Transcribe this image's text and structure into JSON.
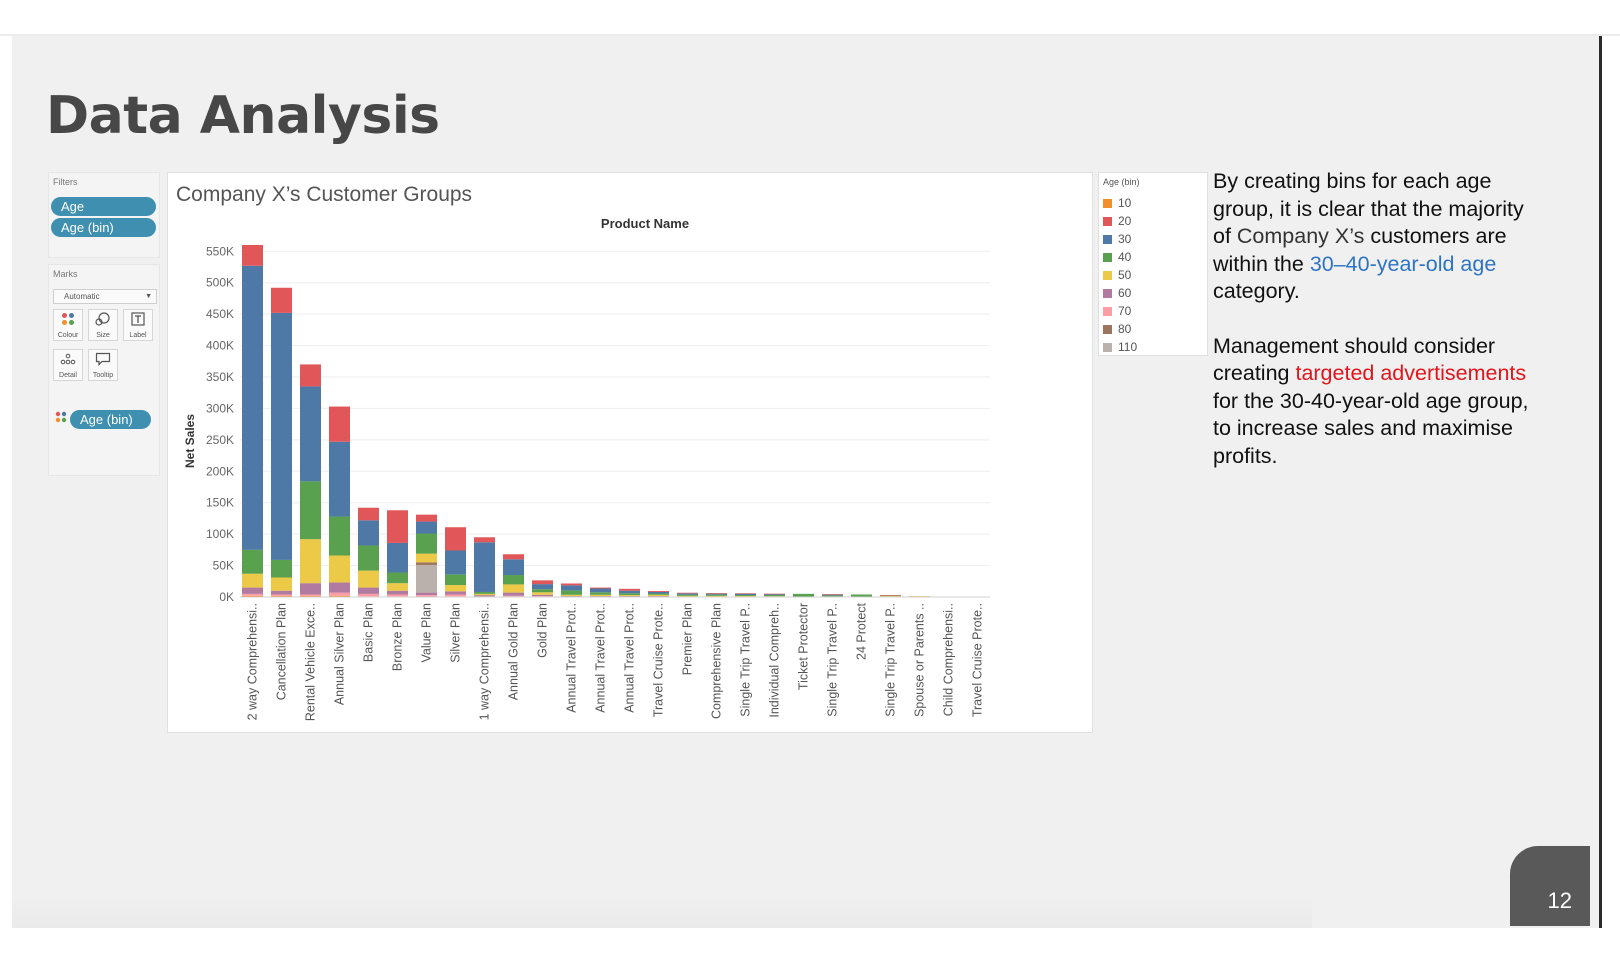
{
  "slide": {
    "title": "Data Analysis",
    "page_number": "12"
  },
  "filters": {
    "title": "Filters",
    "pills": [
      "Age",
      "Age (bin)"
    ]
  },
  "marks": {
    "title": "Marks",
    "mark_type": "Automatic",
    "buttons": [
      {
        "label": "Colour",
        "icon": "colour-dots-icon"
      },
      {
        "label": "Size",
        "icon": "size-shapes-icon"
      },
      {
        "label": "Label",
        "icon": "text-label-icon"
      },
      {
        "label": "Detail",
        "icon": "detail-dots-icon"
      },
      {
        "label": "Tooltip",
        "icon": "tooltip-bubble-icon"
      }
    ],
    "colour_pill": "Age (bin)"
  },
  "legend": {
    "title": "Age (bin)",
    "items": [
      {
        "label": "10",
        "color": "#f28e2b"
      },
      {
        "label": "20",
        "color": "#e15759"
      },
      {
        "label": "30",
        "color": "#4e79a7"
      },
      {
        "label": "40",
        "color": "#59a14f"
      },
      {
        "label": "50",
        "color": "#edc948"
      },
      {
        "label": "60",
        "color": "#b07aa1"
      },
      {
        "label": "70",
        "color": "#ff9da7"
      },
      {
        "label": "80",
        "color": "#9c755f"
      },
      {
        "label": "110",
        "color": "#bab0ac"
      }
    ]
  },
  "side_text": {
    "p1_a": "By creating bins for each age group, it is clear that the majority of ",
    "p1_b": "Company X’s",
    "p1_c": " customers are within the ",
    "p1_highlight": "30–40-year-old age",
    "p1_d": " category.",
    "p2_a": "Management should consider creating ",
    "p2_highlight": "targeted advertisements",
    "p2_b": " for the 30-40-year-old age group, to increase sales and maximise profits."
  },
  "chart_data": {
    "type": "bar",
    "stacked": true,
    "title": "Company X’s Customer Groups",
    "column_header": "Product Name",
    "ylabel": "Net Sales",
    "ylim": [
      0,
      560000
    ],
    "y_ticks": [
      0,
      50000,
      100000,
      150000,
      200000,
      250000,
      300000,
      350000,
      400000,
      450000,
      500000,
      550000
    ],
    "y_tick_labels": [
      "0K",
      "50K",
      "100K",
      "150K",
      "200K",
      "250K",
      "300K",
      "350K",
      "400K",
      "450K",
      "500K",
      "550K"
    ],
    "grid": true,
    "legend_position": "right",
    "categories": [
      "2 way Comprehensi..",
      "Cancellation Plan",
      "Rental Vehicle Exce..",
      "Annual Silver Plan",
      "Basic Plan",
      "Bronze Plan",
      "Value Plan",
      "Silver Plan",
      "1 way Comprehensi..",
      "Annual Gold Plan",
      "Gold Plan",
      "Annual Travel Prot..",
      "Annual Travel Prot..",
      "Annual Travel Prot..",
      "Travel Cruise Prote..",
      "Premier Plan",
      "Comprehensive Plan",
      "Single Trip Travel P..",
      "Individual Compreh..",
      "Ticket Protector",
      "Single Trip Travel P..",
      "24 Protect",
      "Single Trip Travel P..",
      "Spouse or Parents ..",
      "Child Comprehensi..",
      "Travel Cruise Prote.."
    ],
    "series": [
      {
        "name": "10",
        "values": [
          2000,
          2000,
          2000,
          2000,
          1000,
          1000,
          0,
          1000,
          0,
          1000,
          500,
          0,
          0,
          0,
          0,
          0,
          0,
          0,
          0,
          0,
          0,
          0,
          0,
          0,
          0,
          0
        ]
      },
      {
        "name": "70",
        "values": [
          3000,
          2000,
          2000,
          5000,
          4000,
          3000,
          3000,
          3000,
          1000,
          1000,
          1000,
          500,
          500,
          500,
          500,
          300,
          300,
          200,
          0,
          0,
          200,
          0,
          200,
          800,
          0,
          0
        ]
      },
      {
        "name": "60",
        "values": [
          10000,
          6000,
          18000,
          16000,
          10000,
          6000,
          4000,
          5000,
          2000,
          5000,
          2000,
          1000,
          1000,
          1000,
          1000,
          500,
          500,
          500,
          300,
          0,
          300,
          0,
          300,
          300,
          0,
          0
        ]
      },
      {
        "name": "110",
        "values": [
          0,
          0,
          0,
          0,
          0,
          0,
          44000,
          0,
          0,
          0,
          0,
          0,
          0,
          0,
          0,
          0,
          0,
          0,
          0,
          0,
          0,
          0,
          0,
          0,
          0,
          0
        ]
      },
      {
        "name": "80",
        "values": [
          0,
          0,
          0,
          0,
          0,
          0,
          4000,
          0,
          0,
          0,
          0,
          0,
          0,
          0,
          0,
          0,
          0,
          0,
          0,
          0,
          0,
          0,
          0,
          0,
          0,
          0
        ]
      },
      {
        "name": "50",
        "values": [
          22000,
          21000,
          70000,
          43000,
          27000,
          12000,
          14000,
          10000,
          2000,
          13000,
          4000,
          2000,
          2000,
          1500,
          2000,
          1000,
          1000,
          1000,
          1000,
          0,
          500,
          0,
          1000,
          200,
          0,
          0
        ]
      },
      {
        "name": "40",
        "values": [
          38000,
          28000,
          92000,
          62000,
          40000,
          17000,
          32000,
          17000,
          3000,
          15000,
          5000,
          7000,
          4000,
          3000,
          2000,
          2000,
          2000,
          1500,
          2000,
          5000,
          1500,
          4000,
          1000,
          0,
          0,
          0
        ]
      },
      {
        "name": "30",
        "values": [
          452000,
          393000,
          151000,
          119000,
          40000,
          47000,
          19000,
          38000,
          79000,
          25000,
          8000,
          8000,
          6000,
          4000,
          2500,
          2000,
          1500,
          2000,
          1500,
          0,
          1500,
          0,
          0,
          0,
          0,
          0
        ]
      },
      {
        "name": "20",
        "values": [
          33000,
          40000,
          35000,
          56000,
          20000,
          52000,
          11000,
          37000,
          8000,
          8000,
          6000,
          3000,
          1500,
          3000,
          1500,
          1000,
          1000,
          800,
          500,
          0,
          500,
          0,
          500,
          0,
          0,
          0
        ]
      }
    ]
  }
}
